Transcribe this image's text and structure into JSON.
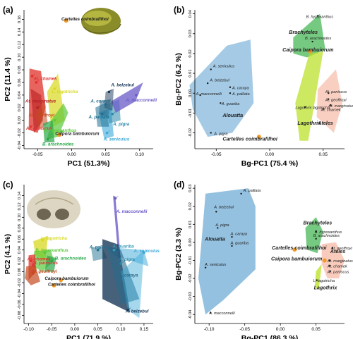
{
  "colors": {
    "Atchamek": "#e0302a",
    "Atmarginatus": "#b52020",
    "Atgeoffroyi": "#c44a20",
    "Atpaniscus": "#d83a3a",
    "Llagotricha": "#d8d820",
    "Bhypoxanthus": "#5cc83c",
    "Barachnoides": "#2aa84a",
    "Abelzebul": "#1a3a5a",
    "Acaraya": "#2a6a8a",
    "Amacconnelli": "#6a5ac8",
    "Apalliata": "#1e7090",
    "Apigra": "#2a88aa",
    "Aguariba": "#3a9ab8",
    "Aseniculus": "#3aa8d8",
    "Cbambuiorum": "#1a1a1a",
    "Ccoimbrafilhoi": "#f0a020",
    "Alouatta": "#5a9fd0",
    "Brachyteles": "#3ab24a",
    "Lagothrix": "#b8e020",
    "Ateles": "#f4a890",
    "fossil": "#f29a28"
  },
  "chart_data": [
    {
      "type": "scatter",
      "panel": "(a)",
      "xlabel": "PC1 (51.3%)",
      "ylabel": "PC2 (11.4 %)",
      "xlim": [
        -0.07,
        0.12
      ],
      "ylim": [
        -0.045,
        0.175
      ],
      "xticks": [
        -0.05,
        0.0,
        0.05,
        0.1
      ],
      "yticks": [
        -0.04,
        -0.02,
        0.0,
        0.02,
        0.04,
        0.06,
        0.08,
        0.1,
        0.12,
        0.14,
        0.16
      ],
      "labels": [
        {
          "text": "Cartelles coimbrafilhoi",
          "x": -0.015,
          "y": 0.158,
          "color": "Cbambuiorum"
        },
        {
          "text": "At. chamek",
          "x": -0.056,
          "y": 0.064,
          "color": "Atchamek"
        },
        {
          "text": "At. marginatus",
          "x": -0.068,
          "y": 0.028,
          "color": "Atmarginatus"
        },
        {
          "text": "At. geoffroyi",
          "x": -0.063,
          "y": 0.006,
          "color": "Atgeoffroyi"
        },
        {
          "text": "At. paniscus",
          "x": -0.067,
          "y": -0.015,
          "color": "Atpaniscus"
        },
        {
          "text": "L. lagotricha",
          "x": -0.029,
          "y": 0.043,
          "color": "Llagotricha"
        },
        {
          "text": "B. hypoxanthus",
          "x": -0.041,
          "y": -0.018,
          "color": "Bhypoxanthus"
        },
        {
          "text": "Caipora bambuiorum",
          "x": -0.024,
          "y": -0.023,
          "color": "Cbambuiorum"
        },
        {
          "text": "B. arachnoides",
          "x": -0.043,
          "y": -0.04,
          "color": "Barachnoides"
        },
        {
          "text": "A. belzebul",
          "x": 0.058,
          "y": 0.054,
          "color": "Abelzebul"
        },
        {
          "text": "A. caraya",
          "x": 0.028,
          "y": 0.028,
          "color": "Acaraya"
        },
        {
          "text": "A. macconnelli",
          "x": 0.08,
          "y": 0.03,
          "color": "Amacconnelli"
        },
        {
          "text": "A. palliata",
          "x": 0.025,
          "y": 0.003,
          "color": "Apalliata"
        },
        {
          "text": "A. pigra",
          "x": 0.061,
          "y": -0.008,
          "color": "Apigra"
        },
        {
          "text": "A. seniculus",
          "x": 0.047,
          "y": -0.032,
          "color": "Aseniculus"
        }
      ]
    },
    {
      "type": "scatter",
      "panel": "(b)",
      "xlabel": "Bg-PC1 (75.4 %)",
      "ylabel": "Bg-PC2 (6.2 %)",
      "xlim": [
        -0.07,
        0.07
      ],
      "ylim": [
        -0.028,
        0.042
      ],
      "xticks": [
        -0.05,
        0.0,
        0.05
      ],
      "yticks": [
        -0.02,
        -0.01,
        0.0,
        0.01,
        0.02,
        0.03,
        0.04
      ],
      "labels": [
        {
          "text": "B. hypoxanthus",
          "x": 0.034,
          "y": 0.038,
          "color": "Cbambuiorum"
        },
        {
          "text": "Brachyteles",
          "x": 0.018,
          "y": 0.03,
          "color": "Cbambuiorum"
        },
        {
          "text": "B. arachnoides",
          "x": 0.033,
          "y": 0.027,
          "color": "Cbambuiorum"
        },
        {
          "text": "Caipora bambuiorum",
          "x": 0.012,
          "y": 0.021,
          "color": "Cbambuiorum"
        },
        {
          "text": "A. seniculus",
          "x": -0.053,
          "y": 0.013,
          "color": "Cbambuiorum"
        },
        {
          "text": "A. belzebul",
          "x": -0.056,
          "y": 0.006,
          "color": "Cbambuiorum"
        },
        {
          "text": "A. caraya",
          "x": -0.035,
          "y": 0.002,
          "color": "Cbambuiorum"
        },
        {
          "text": "A. palliata",
          "x": -0.035,
          "y": -0.001,
          "color": "Cbambuiorum"
        },
        {
          "text": "A. macconnelli",
          "x": -0.069,
          "y": -0.001,
          "color": "Cbambuiorum"
        },
        {
          "text": "A. guariba",
          "x": -0.045,
          "y": -0.006,
          "color": "Cbambuiorum"
        },
        {
          "text": "Alouatta",
          "x": -0.044,
          "y": -0.012,
          "color": "Cbambuiorum"
        },
        {
          "text": "A. pigra",
          "x": -0.052,
          "y": -0.021,
          "color": "Cbambuiorum"
        },
        {
          "text": "Cartelles coimbrafilhoi",
          "x": -0.044,
          "y": -0.024,
          "color": "Cbambuiorum"
        },
        {
          "text": "Lagothrix lagotricha",
          "x": 0.024,
          "y": -0.008,
          "color": "Cbambuiorum"
        },
        {
          "text": "Lagothrix",
          "x": 0.026,
          "y": -0.016,
          "color": "Cbambuiorum"
        },
        {
          "text": "At. paniscus",
          "x": 0.052,
          "y": 0.0,
          "color": "Cbambuiorum"
        },
        {
          "text": "At. geoffroyi",
          "x": 0.052,
          "y": -0.004,
          "color": "Cbambuiorum"
        },
        {
          "text": "At. marginatus",
          "x": 0.055,
          "y": -0.007,
          "color": "Cbambuiorum"
        },
        {
          "text": "At. chamek",
          "x": 0.048,
          "y": -0.009,
          "color": "Cbambuiorum"
        },
        {
          "text": "Ateles",
          "x": 0.045,
          "y": -0.016,
          "color": "Cbambuiorum"
        }
      ]
    },
    {
      "type": "scatter",
      "panel": "(c)",
      "xlabel": "PC1 (71.9 %)",
      "ylabel": "PC2 (4.1 %)",
      "xlim": [
        -0.11,
        0.17
      ],
      "ylim": [
        -0.095,
        0.16
      ],
      "xticks": [
        -0.1,
        -0.05,
        0.0,
        0.05,
        0.1,
        0.15
      ],
      "yticks": [
        -0.08,
        -0.06,
        -0.04,
        -0.02,
        0.0,
        0.02,
        0.04,
        0.06,
        0.08,
        0.1,
        0.12,
        0.14
      ],
      "labels": [
        {
          "text": "A. macconnelli",
          "x": 0.09,
          "y": 0.108,
          "color": "Amacconnelli"
        },
        {
          "text": "L. lagotricha",
          "x": -0.073,
          "y": 0.059,
          "color": "Llagotricha"
        },
        {
          "text": "A. palliata",
          "x": 0.032,
          "y": 0.043,
          "color": "Apalliata"
        },
        {
          "text": "A. guariba",
          "x": 0.082,
          "y": 0.044,
          "color": "Aguariba"
        },
        {
          "text": "A. seniculus",
          "x": 0.128,
          "y": 0.036,
          "color": "Aseniculus"
        },
        {
          "text": "B. hypoxanthus",
          "x": -0.085,
          "y": 0.037,
          "color": "Bhypoxanthus"
        },
        {
          "text": "At. chamek",
          "x": -0.103,
          "y": 0.021,
          "color": "Atchamek"
        },
        {
          "text": "B. arachnoides",
          "x": -0.043,
          "y": 0.022,
          "color": "Barachnoides"
        },
        {
          "text": "At. paniscus",
          "x": -0.093,
          "y": 0.014,
          "color": "Atpaniscus"
        },
        {
          "text": "A. pigra",
          "x": 0.095,
          "y": 0.02,
          "color": "Apigra"
        },
        {
          "text": "At. geoffroyi",
          "x": -0.094,
          "y": -0.002,
          "color": "Atgeoffroyi"
        },
        {
          "text": "Caipora bambuiorum",
          "x": -0.065,
          "y": -0.015,
          "color": "Cbambuiorum"
        },
        {
          "text": "Cartelles coimbrafilhoi",
          "x": -0.058,
          "y": -0.026,
          "color": "Cbambuiorum"
        },
        {
          "text": "A. caraya",
          "x": 0.095,
          "y": -0.009,
          "color": "Acaraya"
        },
        {
          "text": "A. belzebul",
          "x": 0.11,
          "y": -0.075,
          "color": "Abelzebul"
        }
      ]
    },
    {
      "type": "scatter",
      "panel": "(d)",
      "xlabel": "Bg-PC1 (86.3 %)",
      "ylabel": "Bg-PC2 (3.3 %)",
      "xlim": [
        -0.12,
        0.09
      ],
      "ylim": [
        -0.045,
        0.032
      ],
      "xticks": [
        -0.1,
        -0.05,
        0.0,
        0.05
      ],
      "yticks": [
        -0.04,
        -0.03,
        -0.02,
        -0.01,
        0.0,
        0.01,
        0.02,
        0.03
      ],
      "labels": [
        {
          "text": "A. palliata",
          "x": -0.052,
          "y": 0.028,
          "color": "Cbambuiorum"
        },
        {
          "text": "A. belzebul",
          "x": -0.093,
          "y": 0.019,
          "color": "Cbambuiorum"
        },
        {
          "text": "A. pigra",
          "x": -0.091,
          "y": 0.009,
          "color": "Cbambuiorum"
        },
        {
          "text": "A. caraya",
          "x": -0.07,
          "y": 0.004,
          "color": "Cbambuiorum"
        },
        {
          "text": "Alouatta",
          "x": -0.106,
          "y": 0.001,
          "color": "Cbambuiorum"
        },
        {
          "text": "A. guariba",
          "x": -0.07,
          "y": -0.001,
          "color": "Cbambuiorum"
        },
        {
          "text": "A. seniculus",
          "x": -0.106,
          "y": -0.013,
          "color": "Cbambuiorum"
        },
        {
          "text": "A. macconnelli",
          "x": -0.1,
          "y": -0.04,
          "color": "Cbambuiorum"
        },
        {
          "text": "Brachyteles",
          "x": 0.032,
          "y": 0.01,
          "color": "Cbambuiorum"
        },
        {
          "text": "B. hypoxanthus",
          "x": 0.048,
          "y": 0.005,
          "color": "Cbambuiorum"
        },
        {
          "text": "B. arachnoides",
          "x": 0.046,
          "y": 0.003,
          "color": "Cbambuiorum"
        },
        {
          "text": "Cartelles coimbrafilhoi",
          "x": -0.012,
          "y": -0.004,
          "color": "Cbambuiorum"
        },
        {
          "text": "Caipora bambuiorum",
          "x": -0.013,
          "y": -0.01,
          "color": "Cbambuiorum"
        },
        {
          "text": "At. geoffroyi",
          "x": 0.071,
          "y": -0.004,
          "color": "Cbambuiorum"
        },
        {
          "text": "Ateles",
          "x": 0.07,
          "y": -0.006,
          "color": "Cbambuiorum"
        },
        {
          "text": "At. marginatus",
          "x": 0.066,
          "y": -0.011,
          "color": "Cbambuiorum"
        },
        {
          "text": "At. chamek",
          "x": 0.066,
          "y": -0.014,
          "color": "Cbambuiorum"
        },
        {
          "text": "At. paniscus",
          "x": 0.066,
          "y": -0.017,
          "color": "Cbambuiorum"
        },
        {
          "text": "L. lagotricha",
          "x": 0.046,
          "y": -0.022,
          "color": "Cbambuiorum"
        },
        {
          "text": "Lagothrix",
          "x": 0.047,
          "y": -0.026,
          "color": "Cbambuiorum"
        }
      ]
    }
  ]
}
